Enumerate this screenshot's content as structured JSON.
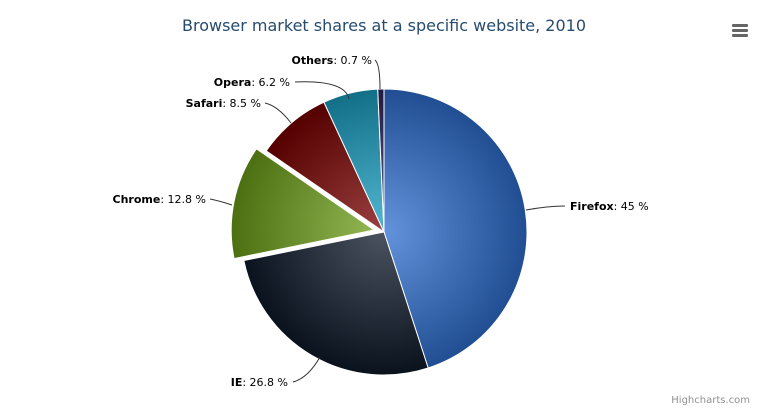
{
  "chart_data": {
    "type": "pie",
    "title": "Browser market shares at a specific website, 2010",
    "unit": "%",
    "slices": [
      {
        "name": "Firefox",
        "value": 45,
        "color": "#2f6fd0",
        "sliced": false
      },
      {
        "name": "IE",
        "value": 26.8,
        "color": "#0d1a2a",
        "sliced": false
      },
      {
        "name": "Chrome",
        "value": 12.8,
        "color": "#6c9e18",
        "sliced": true
      },
      {
        "name": "Safari",
        "value": 8.5,
        "color": "#7a0000",
        "sliced": false
      },
      {
        "name": "Opera",
        "value": 6.2,
        "color": "#1a9fc2",
        "sliced": false
      },
      {
        "name": "Others",
        "value": 0.7,
        "color": "#2e2360",
        "sliced": false
      }
    ],
    "label_values": [
      "45 %",
      "26.8 %",
      "12.8 %",
      "8.5 %",
      "6.2 %",
      "0.7 %"
    ]
  },
  "menu": {
    "icon": "menu-icon"
  },
  "credits": "Highcharts.com"
}
